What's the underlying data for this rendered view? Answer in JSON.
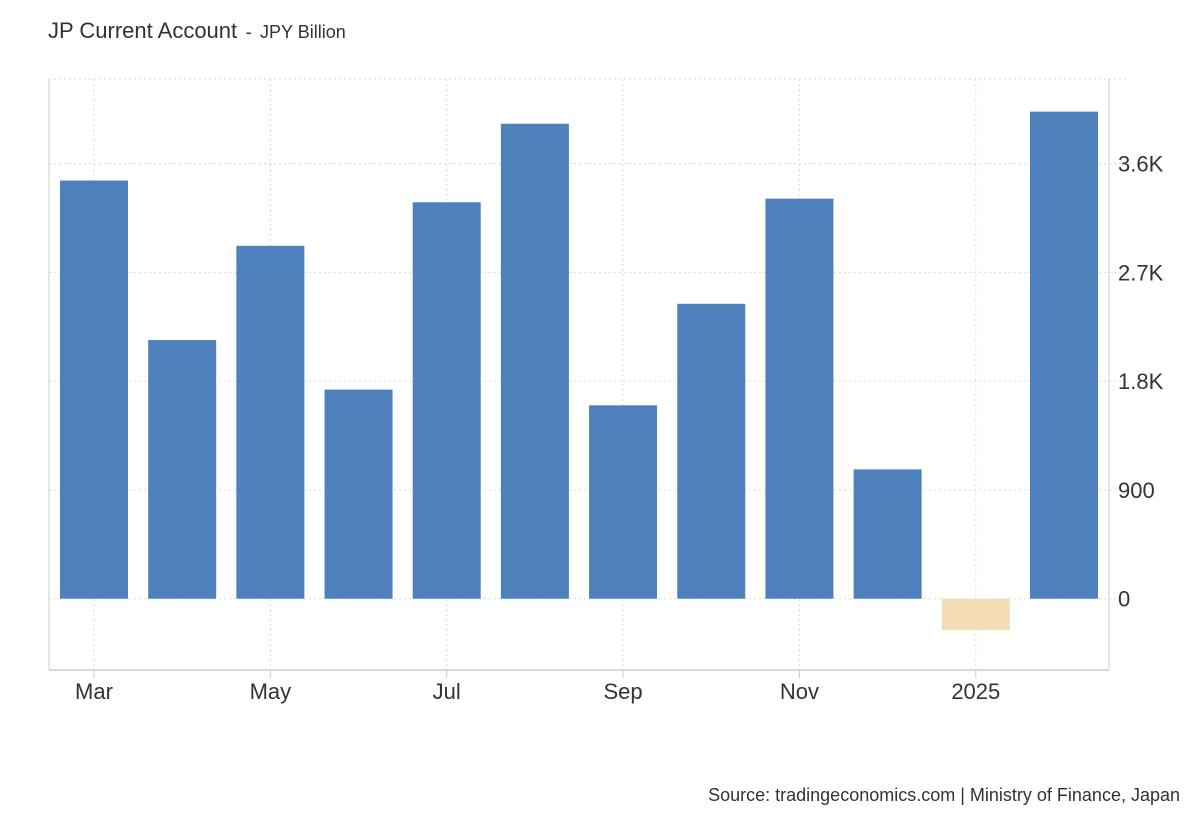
{
  "header": {
    "title": "JP Current Account",
    "separator": "-",
    "unit": "JPY Billion"
  },
  "footer": {
    "source": "Source: tradingeconomics.com | Ministry of Finance, Japan"
  },
  "colors": {
    "positive": "#4e80bb",
    "negative": "#f4dcb5",
    "grid": "#d9d9d9",
    "axis": "#cccccc"
  },
  "chart_data": {
    "type": "bar",
    "title": "JP Current Account",
    "ylabel": "JPY Billion",
    "categories": [
      "2024-03",
      "2024-04",
      "2024-05",
      "2024-06",
      "2024-07",
      "2024-08",
      "2024-09",
      "2024-10",
      "2024-11",
      "2024-12",
      "2025-01",
      "2025-02"
    ],
    "values": [
      3460,
      2140,
      2920,
      1730,
      3280,
      3930,
      1600,
      2440,
      3310,
      1070,
      -260,
      4030
    ],
    "x_tick_labels": [
      {
        "label": "Mar",
        "index": 0
      },
      {
        "label": "May",
        "index": 2
      },
      {
        "label": "Jul",
        "index": 4
      },
      {
        "label": "Sep",
        "index": 6
      },
      {
        "label": "Nov",
        "index": 8
      },
      {
        "label": "2025",
        "index": 10
      }
    ],
    "y_ticks": [
      {
        "value": 0,
        "label": "0"
      },
      {
        "value": 900,
        "label": "900"
      },
      {
        "value": 1800,
        "label": "1.8K"
      },
      {
        "value": 2700,
        "label": "2.7K"
      },
      {
        "value": 3600,
        "label": "3.6K"
      }
    ],
    "ylim": [
      -590,
      4300
    ],
    "grid": true,
    "legend": "none",
    "y_axis_side": "right"
  }
}
